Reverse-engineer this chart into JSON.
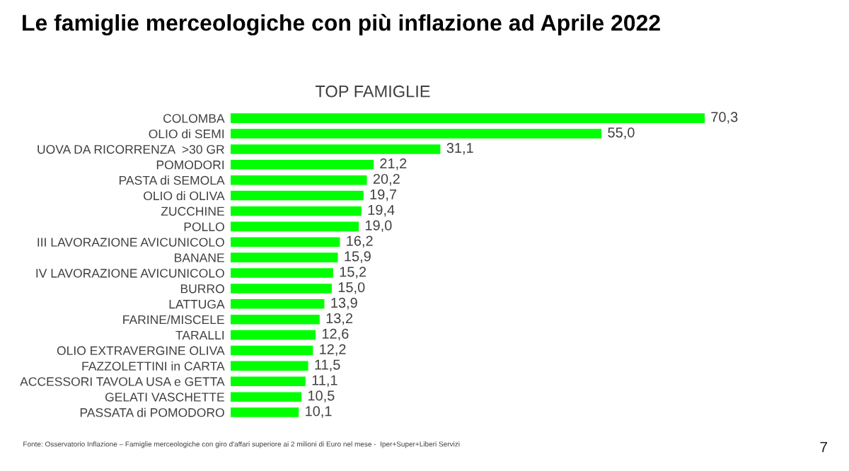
{
  "chart_data": {
    "type": "bar",
    "orientation": "horizontal",
    "title": "Le famiglie merceologiche con più inflazione ad Aprile 2022",
    "subtitle": "TOP FAMIGLIE",
    "categories": [
      "COLOMBA",
      "OLIO di SEMI",
      "UOVA DA RICORRENZA  >30 GR",
      "POMODORI",
      "PASTA di SEMOLA",
      "OLIO di OLIVA",
      "ZUCCHINE",
      "POLLO",
      "III LAVORAZIONE AVICUNICOLO",
      "BANANE",
      "IV LAVORAZIONE AVICUNICOLO",
      "BURRO",
      "LATTUGA",
      "FARINE/MISCELE",
      "TARALLI",
      "OLIO EXTRAVERGINE OLIVA",
      "FAZZOLETTINI in CARTA",
      "ACCESSORI TAVOLA USA e GETTA",
      "GELATI VASCHETTE",
      "PASSATA di POMODORO"
    ],
    "values": [
      70.3,
      55.0,
      31.1,
      21.2,
      20.2,
      19.7,
      19.4,
      19.0,
      16.2,
      15.9,
      15.2,
      15.0,
      13.9,
      13.2,
      12.6,
      12.2,
      11.5,
      11.1,
      10.5,
      10.1
    ],
    "value_labels": [
      "70,3",
      "55,0",
      "31,1",
      "21,2",
      "20,2",
      "19,7",
      "19,4",
      "19,0",
      "16,2",
      "15,9",
      "15,2",
      "15,0",
      "13,9",
      "13,2",
      "12,6",
      "12,2",
      "11,5",
      "11,1",
      "10,5",
      "10,1"
    ],
    "color": "#00ff00",
    "annotations": [
      "Fonte: Osservatorio Inflazione – Famiglie merceologiche con giro d'affari superiore ai 2 milioni di Euro nel mese -  Iper+Super+Liberi Servizi",
      "7"
    ]
  }
}
